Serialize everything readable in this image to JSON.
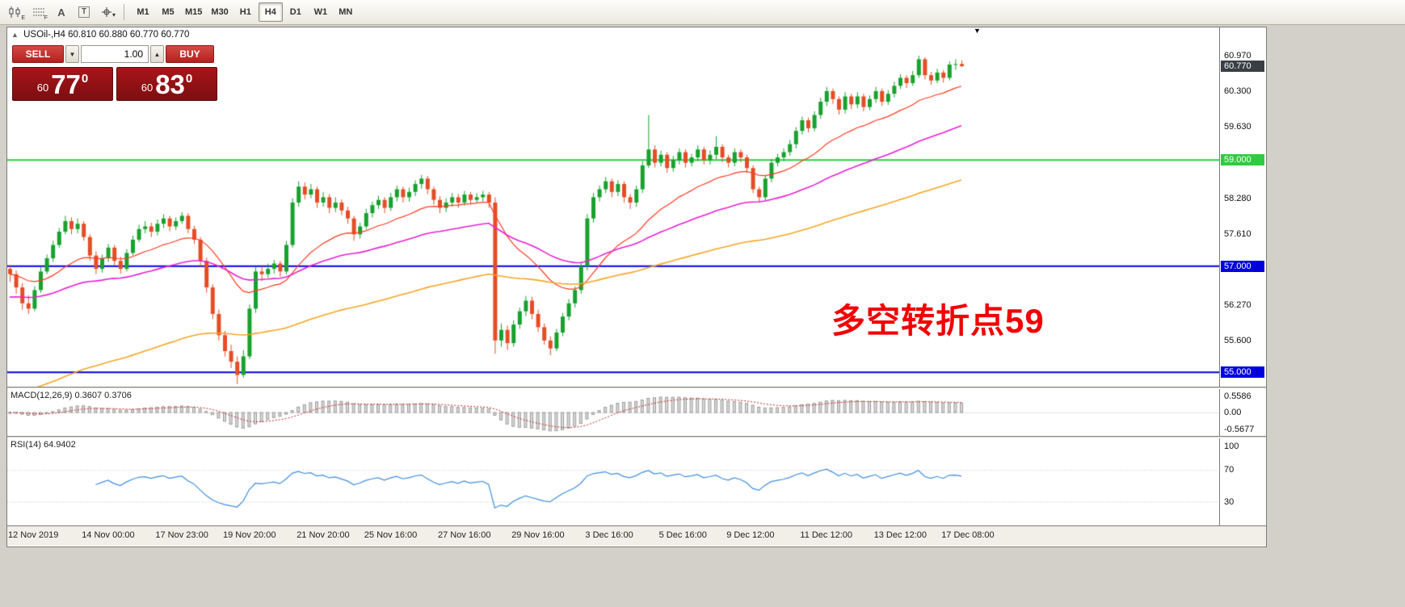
{
  "toolbar": {
    "icons": [
      {
        "name": "chart-type-icon",
        "badge": "E"
      },
      {
        "name": "grid-icon",
        "badge": "F"
      },
      {
        "name": "text-label-icon",
        "badge": "A"
      },
      {
        "name": "text-box-icon",
        "badge": "T"
      },
      {
        "name": "drawing-tools-icon",
        "badge": "▾"
      }
    ],
    "timeframes": [
      {
        "label": "M1",
        "active": false
      },
      {
        "label": "M5",
        "active": false
      },
      {
        "label": "M15",
        "active": false
      },
      {
        "label": "M30",
        "active": false
      },
      {
        "label": "H1",
        "active": false
      },
      {
        "label": "H4",
        "active": true
      },
      {
        "label": "D1",
        "active": false
      },
      {
        "label": "W1",
        "active": false
      },
      {
        "label": "MN",
        "active": false
      }
    ]
  },
  "window_info": {
    "collapse_glyph": "▲",
    "symbol": "USOil-,H4",
    "ohlc": "60.810 60.880 60.770 60.770"
  },
  "trade_panel": {
    "sell_label": "SELL",
    "buy_label": "BUY",
    "volume": "1.00",
    "vol_down_glyph": "▼",
    "vol_up_glyph": "▲",
    "sell_price": {
      "small": "60",
      "big": "77",
      "sup": "0"
    },
    "buy_price": {
      "small": "60",
      "big": "83",
      "sup": "0"
    }
  },
  "annotation": {
    "text": "多空转折点59",
    "color": "#f00000"
  },
  "macd_panel": {
    "title": "MACD(12,26,9) 0.3607 0.3706"
  },
  "rsi_panel": {
    "title": "RSI(14) 64.9402"
  },
  "chart_data": {
    "type": "candlestick",
    "title": "USOil-,H4",
    "ylim": [
      54.73,
      61.5
    ],
    "up_color": "#18a12e",
    "down_color": "#e44d26",
    "candles": [
      [
        56.95,
        57.02,
        56.7,
        56.85
      ],
      [
        56.85,
        56.92,
        56.48,
        56.6
      ],
      [
        56.6,
        56.68,
        56.18,
        56.3
      ],
      [
        56.3,
        56.45,
        56.1,
        56.2
      ],
      [
        56.2,
        56.62,
        56.15,
        56.55
      ],
      [
        56.55,
        56.98,
        56.5,
        56.9
      ],
      [
        56.9,
        57.22,
        56.85,
        57.15
      ],
      [
        57.15,
        57.48,
        57.08,
        57.4
      ],
      [
        57.4,
        57.72,
        57.35,
        57.65
      ],
      [
        57.65,
        57.95,
        57.6,
        57.85
      ],
      [
        57.85,
        57.92,
        57.6,
        57.7
      ],
      [
        57.7,
        57.9,
        57.62,
        57.8
      ],
      [
        57.8,
        57.85,
        57.48,
        57.55
      ],
      [
        57.55,
        57.6,
        57.1,
        57.2
      ],
      [
        57.2,
        57.28,
        56.85,
        56.95
      ],
      [
        56.95,
        57.22,
        56.88,
        57.15
      ],
      [
        57.15,
        57.42,
        57.08,
        57.35
      ],
      [
        57.35,
        57.4,
        57.02,
        57.1
      ],
      [
        57.1,
        57.18,
        56.86,
        56.95
      ],
      [
        56.95,
        57.32,
        56.9,
        57.25
      ],
      [
        57.25,
        57.58,
        57.2,
        57.5
      ],
      [
        57.5,
        57.78,
        57.45,
        57.7
      ],
      [
        57.7,
        57.85,
        57.62,
        57.75
      ],
      [
        57.75,
        57.82,
        57.55,
        57.65
      ],
      [
        57.65,
        57.88,
        57.58,
        57.8
      ],
      [
        57.8,
        57.98,
        57.72,
        57.9
      ],
      [
        57.9,
        57.95,
        57.66,
        57.75
      ],
      [
        57.75,
        57.92,
        57.68,
        57.85
      ],
      [
        57.85,
        58.02,
        57.8,
        57.95
      ],
      [
        57.95,
        58.0,
        57.62,
        57.7
      ],
      [
        57.7,
        57.76,
        57.42,
        57.5
      ],
      [
        57.5,
        57.55,
        57.0,
        57.1
      ],
      [
        57.1,
        57.16,
        56.5,
        56.6
      ],
      [
        56.6,
        56.66,
        56.0,
        56.1
      ],
      [
        56.1,
        56.18,
        55.6,
        55.7
      ],
      [
        55.7,
        55.78,
        55.3,
        55.4
      ],
      [
        55.4,
        55.52,
        55.08,
        55.2
      ],
      [
        55.2,
        55.3,
        54.78,
        54.95
      ],
      [
        54.95,
        55.42,
        54.9,
        55.3
      ],
      [
        55.3,
        56.28,
        55.25,
        56.2
      ],
      [
        56.2,
        56.98,
        56.12,
        56.9
      ],
      [
        56.9,
        57.0,
        56.72,
        56.85
      ],
      [
        56.85,
        57.05,
        56.78,
        56.95
      ],
      [
        56.95,
        57.12,
        56.86,
        57.05
      ],
      [
        57.05,
        57.1,
        56.8,
        56.9
      ],
      [
        56.9,
        57.48,
        56.85,
        57.4
      ],
      [
        57.4,
        58.28,
        57.35,
        58.2
      ],
      [
        58.2,
        58.6,
        58.12,
        58.5
      ],
      [
        58.5,
        58.58,
        58.26,
        58.35
      ],
      [
        58.35,
        58.55,
        58.28,
        58.45
      ],
      [
        58.45,
        58.5,
        58.1,
        58.2
      ],
      [
        58.2,
        58.4,
        58.12,
        58.3
      ],
      [
        58.3,
        58.36,
        58.0,
        58.1
      ],
      [
        58.1,
        58.3,
        58.02,
        58.2
      ],
      [
        58.2,
        58.26,
        57.96,
        58.05
      ],
      [
        58.05,
        58.12,
        57.8,
        57.9
      ],
      [
        57.9,
        57.95,
        57.48,
        57.6
      ],
      [
        57.6,
        57.82,
        57.52,
        57.75
      ],
      [
        57.75,
        58.08,
        57.7,
        58.0
      ],
      [
        58.0,
        58.22,
        57.92,
        58.15
      ],
      [
        58.15,
        58.33,
        58.08,
        58.25
      ],
      [
        58.25,
        58.3,
        58.0,
        58.1
      ],
      [
        58.1,
        58.38,
        58.04,
        58.3
      ],
      [
        58.3,
        58.52,
        58.22,
        58.45
      ],
      [
        58.45,
        58.5,
        58.2,
        58.3
      ],
      [
        58.3,
        58.48,
        58.22,
        58.4
      ],
      [
        58.4,
        58.62,
        58.32,
        58.55
      ],
      [
        58.55,
        58.72,
        58.46,
        58.65
      ],
      [
        58.65,
        58.7,
        58.36,
        58.45
      ],
      [
        58.45,
        58.5,
        58.16,
        58.25
      ],
      [
        58.25,
        58.32,
        58.0,
        58.1
      ],
      [
        58.1,
        58.28,
        58.02,
        58.2
      ],
      [
        58.2,
        58.38,
        58.12,
        58.3
      ],
      [
        58.3,
        58.36,
        58.1,
        58.2
      ],
      [
        58.2,
        58.42,
        58.14,
        58.35
      ],
      [
        58.35,
        58.4,
        58.16,
        58.25
      ],
      [
        58.25,
        58.38,
        58.18,
        58.3
      ],
      [
        58.3,
        58.42,
        58.22,
        58.35
      ],
      [
        58.35,
        58.4,
        58.1,
        58.2
      ],
      [
        58.2,
        58.3,
        55.35,
        55.6
      ],
      [
        55.6,
        55.92,
        55.48,
        55.8
      ],
      [
        55.8,
        55.88,
        55.42,
        55.55
      ],
      [
        55.55,
        55.98,
        55.48,
        55.9
      ],
      [
        55.9,
        56.22,
        55.82,
        56.15
      ],
      [
        56.15,
        56.44,
        56.06,
        56.35
      ],
      [
        56.35,
        56.42,
        56.0,
        56.1
      ],
      [
        56.1,
        56.18,
        55.76,
        55.85
      ],
      [
        55.85,
        55.92,
        55.52,
        55.6
      ],
      [
        55.6,
        55.68,
        55.32,
        55.45
      ],
      [
        55.45,
        55.82,
        55.4,
        55.75
      ],
      [
        55.75,
        56.12,
        55.68,
        56.05
      ],
      [
        56.05,
        56.38,
        55.98,
        56.3
      ],
      [
        56.3,
        56.62,
        56.22,
        56.55
      ],
      [
        56.55,
        57.08,
        56.48,
        57.0
      ],
      [
        57.0,
        57.98,
        56.92,
        57.9
      ],
      [
        57.9,
        58.38,
        57.82,
        58.3
      ],
      [
        58.3,
        58.52,
        58.22,
        58.45
      ],
      [
        58.45,
        58.68,
        58.38,
        58.6
      ],
      [
        58.6,
        58.65,
        58.3,
        58.4
      ],
      [
        58.4,
        58.62,
        58.32,
        58.55
      ],
      [
        58.55,
        58.6,
        58.2,
        58.3
      ],
      [
        58.3,
        58.36,
        58.08,
        58.2
      ],
      [
        58.2,
        58.52,
        58.12,
        58.45
      ],
      [
        58.45,
        58.98,
        58.38,
        58.9
      ],
      [
        58.9,
        59.85,
        58.85,
        59.2
      ],
      [
        59.2,
        59.28,
        58.86,
        58.95
      ],
      [
        58.95,
        59.18,
        58.88,
        59.1
      ],
      [
        59.1,
        59.15,
        58.76,
        58.85
      ],
      [
        58.85,
        59.08,
        58.78,
        59.0
      ],
      [
        59.0,
        59.22,
        58.92,
        59.15
      ],
      [
        59.15,
        59.2,
        58.86,
        58.95
      ],
      [
        58.95,
        59.12,
        58.88,
        59.05
      ],
      [
        59.05,
        59.28,
        58.98,
        59.2
      ],
      [
        59.2,
        59.25,
        58.92,
        59.0
      ],
      [
        59.0,
        59.18,
        58.92,
        59.1
      ],
      [
        59.1,
        59.45,
        59.02,
        59.25
      ],
      [
        59.25,
        59.3,
        58.96,
        59.05
      ],
      [
        59.05,
        59.1,
        58.86,
        58.95
      ],
      [
        58.95,
        59.22,
        58.88,
        59.15
      ],
      [
        59.15,
        59.2,
        58.96,
        59.05
      ],
      [
        59.05,
        59.1,
        58.76,
        58.85
      ],
      [
        58.85,
        58.9,
        58.38,
        58.45
      ],
      [
        58.45,
        58.5,
        58.2,
        58.3
      ],
      [
        58.3,
        58.72,
        58.24,
        58.65
      ],
      [
        58.65,
        59.02,
        58.58,
        58.95
      ],
      [
        58.95,
        59.12,
        58.88,
        59.05
      ],
      [
        59.05,
        59.22,
        58.98,
        59.15
      ],
      [
        59.15,
        59.38,
        59.08,
        59.3
      ],
      [
        59.3,
        59.62,
        59.22,
        59.55
      ],
      [
        59.55,
        59.82,
        59.48,
        59.75
      ],
      [
        59.75,
        59.8,
        59.52,
        59.6
      ],
      [
        59.6,
        59.92,
        59.54,
        59.85
      ],
      [
        59.85,
        60.18,
        59.78,
        60.1
      ],
      [
        60.1,
        60.38,
        60.02,
        60.3
      ],
      [
        60.3,
        60.35,
        60.06,
        60.15
      ],
      [
        60.15,
        60.2,
        59.86,
        59.95
      ],
      [
        59.95,
        60.28,
        59.88,
        60.2
      ],
      [
        60.2,
        60.25,
        59.96,
        60.05
      ],
      [
        60.05,
        60.28,
        59.98,
        60.2
      ],
      [
        60.2,
        60.25,
        59.92,
        60.0
      ],
      [
        60.0,
        60.22,
        59.94,
        60.15
      ],
      [
        60.15,
        60.38,
        60.08,
        60.3
      ],
      [
        60.3,
        60.35,
        60.02,
        60.1
      ],
      [
        60.1,
        60.32,
        60.04,
        60.25
      ],
      [
        60.25,
        60.48,
        60.18,
        60.4
      ],
      [
        60.4,
        60.62,
        60.34,
        60.55
      ],
      [
        60.55,
        60.6,
        60.36,
        60.45
      ],
      [
        60.45,
        60.68,
        60.4,
        60.6
      ],
      [
        60.6,
        60.97,
        60.55,
        60.9
      ],
      [
        60.9,
        60.94,
        60.52,
        60.6
      ],
      [
        60.6,
        60.66,
        60.42,
        60.5
      ],
      [
        60.5,
        60.72,
        60.45,
        60.65
      ],
      [
        60.65,
        60.7,
        60.46,
        60.55
      ],
      [
        60.55,
        60.86,
        60.5,
        60.8
      ],
      [
        60.8,
        60.9,
        60.7,
        60.81
      ],
      [
        60.81,
        60.88,
        60.76,
        60.77
      ]
    ],
    "moving_averages": [
      {
        "name": "MA-fast",
        "period": 21,
        "color": "#ff3b1f",
        "seed": null,
        "width": 1.2
      },
      {
        "name": "MA-mid",
        "period": 55,
        "color": "#e81fd4",
        "seed": 56.4,
        "width": 1.6
      },
      {
        "name": "MA-slow",
        "period": 120,
        "color": "#f5a623",
        "seed": 54.55,
        "width": 1.6
      }
    ],
    "hlines": [
      {
        "price": 59.0,
        "color": "#2ecc40",
        "label": "59.000"
      },
      {
        "price": 57.0,
        "color": "#0000dd",
        "label": "57.000"
      },
      {
        "price": 55.0,
        "color": "#0000dd",
        "label": "55.000"
      }
    ],
    "current_price": {
      "value": 60.77,
      "label": "60.770",
      "badge_color": "#3a3f46"
    },
    "price_labels": [
      {
        "text": "60.970",
        "v": 60.97
      },
      {
        "text": "60.300",
        "v": 60.3
      },
      {
        "text": "59.630",
        "v": 59.63
      },
      {
        "text": "58.280",
        "v": 58.28
      },
      {
        "text": "57.610",
        "v": 57.61
      },
      {
        "text": "56.270",
        "v": 56.27
      },
      {
        "text": "55.600",
        "v": 55.6
      }
    ],
    "time_labels": [
      {
        "text": "12 Nov 2019",
        "i": 0
      },
      {
        "text": "14 Nov 00:00",
        "i": 12
      },
      {
        "text": "17 Nov 23:00",
        "i": 24
      },
      {
        "text": "19 Nov 20:00",
        "i": 35
      },
      {
        "text": "21 Nov 20:00",
        "i": 47
      },
      {
        "text": "25 Nov 16:00",
        "i": 58
      },
      {
        "text": "27 Nov 16:00",
        "i": 70
      },
      {
        "text": "29 Nov 16:00",
        "i": 82
      },
      {
        "text": "3 Dec 16:00",
        "i": 94
      },
      {
        "text": "5 Dec 16:00",
        "i": 106
      },
      {
        "text": "9 Dec 12:00",
        "i": 117
      },
      {
        "text": "11 Dec 12:00",
        "i": 129
      },
      {
        "text": "13 Dec 12:00",
        "i": 141
      },
      {
        "text": "17 Dec 08:00",
        "i": 152
      }
    ],
    "macd": {
      "fast": 12,
      "slow": 26,
      "signal_period": 9,
      "ylim": [
        -0.8,
        0.8
      ],
      "hist_color": "#dadada",
      "hist_border": "#9a9a9a",
      "signal_color": "#cc2222",
      "scale_labels": [
        {
          "text": "0.5586",
          "v": 0.5586
        },
        {
          "text": "0.00",
          "v": 0
        },
        {
          "text": "-0.5677",
          "v": -0.5677
        }
      ]
    },
    "rsi": {
      "period": 14,
      "color": "#3f8ede",
      "levels": [
        70,
        30
      ],
      "ylim": [
        0,
        110
      ],
      "scale_labels": [
        {
          "text": "100",
          "v": 100
        },
        {
          "text": "70",
          "v": 70
        },
        {
          "text": "30",
          "v": 30
        }
      ]
    }
  }
}
